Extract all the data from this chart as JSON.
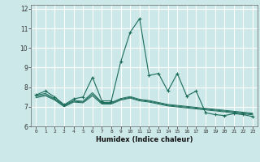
{
  "xlabel": "Humidex (Indice chaleur)",
  "background_color": "#cce8e8",
  "grid_color": "#ffffff",
  "line_color": "#1a6b5a",
  "xlim": [
    -0.5,
    23.5
  ],
  "ylim": [
    6.0,
    12.2
  ],
  "yticks": [
    6,
    7,
    8,
    9,
    10,
    11,
    12
  ],
  "xticks": [
    0,
    1,
    2,
    3,
    4,
    5,
    6,
    7,
    8,
    9,
    10,
    11,
    12,
    13,
    14,
    15,
    16,
    17,
    18,
    19,
    20,
    21,
    22,
    23
  ],
  "line1_x": [
    0,
    1,
    2,
    3,
    4,
    5,
    6,
    7,
    8,
    9,
    10,
    11,
    12,
    13,
    14,
    15,
    16,
    17,
    18,
    19,
    20,
    21,
    22,
    23
  ],
  "line1_y": [
    7.6,
    7.8,
    7.5,
    7.1,
    7.4,
    7.5,
    8.5,
    7.3,
    7.3,
    9.3,
    10.8,
    11.5,
    8.6,
    8.7,
    7.8,
    8.7,
    7.55,
    7.8,
    6.7,
    6.6,
    6.55,
    6.65,
    6.6,
    6.5
  ],
  "line2_x": [
    0,
    1,
    2,
    3,
    4,
    5,
    6,
    7,
    8,
    9,
    10,
    11,
    12,
    13,
    14,
    15,
    16,
    17,
    18,
    19,
    20,
    21,
    22,
    23
  ],
  "line2_y": [
    7.58,
    7.68,
    7.42,
    7.08,
    7.32,
    7.28,
    7.72,
    7.22,
    7.22,
    7.42,
    7.52,
    7.38,
    7.32,
    7.22,
    7.12,
    7.07,
    7.02,
    6.97,
    6.92,
    6.87,
    6.82,
    6.77,
    6.72,
    6.67
  ],
  "line3_x": [
    0,
    1,
    2,
    3,
    4,
    5,
    6,
    7,
    8,
    9,
    10,
    11,
    12,
    13,
    14,
    15,
    16,
    17,
    18,
    19,
    20,
    21,
    22,
    23
  ],
  "line3_y": [
    7.52,
    7.62,
    7.38,
    7.04,
    7.28,
    7.24,
    7.64,
    7.18,
    7.18,
    7.38,
    7.48,
    7.34,
    7.28,
    7.18,
    7.08,
    7.03,
    6.98,
    6.93,
    6.88,
    6.83,
    6.78,
    6.73,
    6.68,
    6.63
  ],
  "line4_x": [
    0,
    1,
    2,
    3,
    4,
    5,
    6,
    7,
    8,
    9,
    10,
    11,
    12,
    13,
    14,
    15,
    16,
    17,
    18,
    19,
    20,
    21,
    22,
    23
  ],
  "line4_y": [
    7.46,
    7.56,
    7.34,
    7.0,
    7.24,
    7.2,
    7.56,
    7.14,
    7.14,
    7.34,
    7.44,
    7.3,
    7.24,
    7.14,
    7.04,
    6.99,
    6.94,
    6.89,
    6.84,
    6.79,
    6.74,
    6.69,
    6.64,
    6.59
  ]
}
